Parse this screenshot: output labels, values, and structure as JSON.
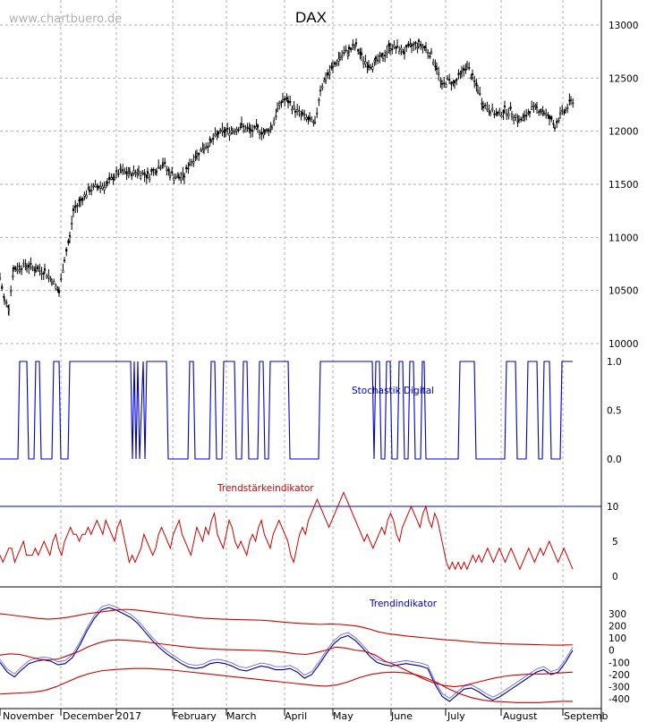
{
  "watermark": "www.chartbuero.de",
  "chart_data": [
    {
      "type": "candlestick",
      "title": "DAX",
      "ylim": [
        10000,
        13000
      ],
      "yticks": [
        "13000",
        "12500",
        "12000",
        "11500",
        "11000",
        "10500",
        "10000"
      ],
      "months": [
        "November",
        "December",
        "2017",
        "February",
        "March",
        "April",
        "May",
        "June",
        "July",
        "August",
        "Septemb"
      ],
      "grid": true,
      "approx_close_path": [
        [
          0,
          10620
        ],
        [
          5,
          10400
        ],
        [
          10,
          10350
        ],
        [
          15,
          10700
        ],
        [
          22,
          10720
        ],
        [
          30,
          10740
        ],
        [
          40,
          10700
        ],
        [
          50,
          10680
        ],
        [
          58,
          10600
        ],
        [
          66,
          10480
        ],
        [
          72,
          10800
        ],
        [
          78,
          11000
        ],
        [
          82,
          11250
        ],
        [
          90,
          11350
        ],
        [
          100,
          11450
        ],
        [
          110,
          11480
        ],
        [
          120,
          11500
        ],
        [
          128,
          11580
        ],
        [
          135,
          11620
        ],
        [
          145,
          11600
        ],
        [
          155,
          11620
        ],
        [
          165,
          11580
        ],
        [
          175,
          11650
        ],
        [
          182,
          11700
        ],
        [
          190,
          11600
        ],
        [
          200,
          11560
        ],
        [
          206,
          11580
        ],
        [
          212,
          11700
        ],
        [
          220,
          11780
        ],
        [
          228,
          11850
        ],
        [
          236,
          11900
        ],
        [
          244,
          11980
        ],
        [
          252,
          12000
        ],
        [
          260,
          12010
        ],
        [
          270,
          12050
        ],
        [
          280,
          12000
        ],
        [
          288,
          12020
        ],
        [
          296,
          11980
        ],
        [
          304,
          12050
        ],
        [
          310,
          12200
        ],
        [
          316,
          12300
        ],
        [
          322,
          12280
        ],
        [
          330,
          12200
        ],
        [
          338,
          12150
        ],
        [
          346,
          12100
        ],
        [
          352,
          12060
        ],
        [
          358,
          12400
        ],
        [
          364,
          12500
        ],
        [
          372,
          12600
        ],
        [
          380,
          12700
        ],
        [
          390,
          12760
        ],
        [
          398,
          12800
        ],
        [
          404,
          12700
        ],
        [
          412,
          12620
        ],
        [
          420,
          12650
        ],
        [
          428,
          12700
        ],
        [
          436,
          12800
        ],
        [
          444,
          12780
        ],
        [
          452,
          12750
        ],
        [
          460,
          12800
        ],
        [
          468,
          12820
        ],
        [
          476,
          12780
        ],
        [
          482,
          12720
        ],
        [
          488,
          12600
        ],
        [
          494,
          12420
        ],
        [
          500,
          12480
        ],
        [
          508,
          12450
        ],
        [
          516,
          12550
        ],
        [
          522,
          12620
        ],
        [
          528,
          12500
        ],
        [
          534,
          12400
        ],
        [
          540,
          12250
        ],
        [
          548,
          12200
        ],
        [
          556,
          12150
        ],
        [
          564,
          12200
        ],
        [
          572,
          12180
        ],
        [
          580,
          12100
        ],
        [
          586,
          12120
        ],
        [
          592,
          12200
        ],
        [
          600,
          12220
        ],
        [
          608,
          12180
        ],
        [
          614,
          12120
        ],
        [
          620,
          12050
        ],
        [
          626,
          12150
        ],
        [
          632,
          12200
        ],
        [
          638,
          12280
        ],
        [
          642,
          12300
        ]
      ]
    },
    {
      "type": "line",
      "title": "Stochastik Digital",
      "yticks": [
        "1.0",
        "0.5",
        "0.0"
      ],
      "ylim": [
        0,
        1
      ],
      "signal": [
        [
          0,
          0
        ],
        [
          20,
          0
        ],
        [
          22,
          1
        ],
        [
          30,
          1
        ],
        [
          32,
          0
        ],
        [
          38,
          0
        ],
        [
          40,
          1
        ],
        [
          44,
          1
        ],
        [
          46,
          0
        ],
        [
          58,
          0
        ],
        [
          60,
          1
        ],
        [
          66,
          1
        ],
        [
          68,
          0
        ],
        [
          76,
          0
        ],
        [
          78,
          1
        ],
        [
          146,
          1
        ],
        [
          148,
          0
        ],
        [
          150,
          1
        ],
        [
          152,
          0
        ],
        [
          154,
          1
        ],
        [
          156,
          0
        ],
        [
          160,
          1
        ],
        [
          162,
          0
        ],
        [
          164,
          1
        ],
        [
          186,
          1
        ],
        [
          188,
          0
        ],
        [
          210,
          0
        ],
        [
          212,
          1
        ],
        [
          216,
          1
        ],
        [
          218,
          0
        ],
        [
          234,
          0
        ],
        [
          236,
          1
        ],
        [
          240,
          1
        ],
        [
          242,
          0
        ],
        [
          248,
          0
        ],
        [
          250,
          1
        ],
        [
          262,
          1
        ],
        [
          264,
          0
        ],
        [
          270,
          0
        ],
        [
          272,
          1
        ],
        [
          276,
          1
        ],
        [
          278,
          0
        ],
        [
          288,
          0
        ],
        [
          290,
          1
        ],
        [
          294,
          1
        ],
        [
          296,
          0
        ],
        [
          300,
          0
        ],
        [
          302,
          1
        ],
        [
          322,
          1
        ],
        [
          324,
          0
        ],
        [
          356,
          0
        ],
        [
          358,
          1
        ],
        [
          416,
          1
        ],
        [
          418,
          0
        ],
        [
          420,
          1
        ],
        [
          424,
          1
        ],
        [
          426,
          0
        ],
        [
          430,
          0
        ],
        [
          432,
          1
        ],
        [
          436,
          1
        ],
        [
          438,
          0
        ],
        [
          444,
          0
        ],
        [
          446,
          1
        ],
        [
          450,
          1
        ],
        [
          452,
          0
        ],
        [
          456,
          0
        ],
        [
          458,
          1
        ],
        [
          462,
          1
        ],
        [
          464,
          0
        ],
        [
          470,
          0
        ],
        [
          472,
          1
        ],
        [
          474,
          1
        ],
        [
          476,
          0
        ],
        [
          512,
          0
        ],
        [
          514,
          1
        ],
        [
          530,
          1
        ],
        [
          532,
          0
        ],
        [
          564,
          0
        ],
        [
          566,
          1
        ],
        [
          576,
          1
        ],
        [
          578,
          0
        ],
        [
          588,
          0
        ],
        [
          590,
          1
        ],
        [
          600,
          1
        ],
        [
          602,
          0
        ],
        [
          606,
          0
        ],
        [
          608,
          1
        ],
        [
          614,
          1
        ],
        [
          616,
          0
        ],
        [
          626,
          0
        ],
        [
          628,
          1
        ],
        [
          640,
          1
        ]
      ]
    },
    {
      "type": "line",
      "title": "Trendstärkeindikator",
      "yticks": [
        "10",
        "5",
        "0"
      ],
      "ylim": [
        0,
        10
      ],
      "values": [
        3,
        2,
        3,
        4,
        4,
        2,
        3,
        4,
        5,
        3,
        3,
        3,
        4,
        3,
        4,
        5,
        4,
        3,
        5,
        6,
        4,
        3,
        5,
        6,
        7,
        6,
        6,
        5,
        6,
        6,
        7,
        6,
        7,
        8,
        7,
        6,
        8,
        7,
        6,
        5,
        7,
        8,
        6,
        4,
        2,
        3,
        2,
        3,
        4,
        6,
        5,
        4,
        3,
        4,
        6,
        7,
        6,
        5,
        4,
        6,
        7,
        8,
        6,
        5,
        4,
        3,
        5,
        7,
        6,
        5,
        7,
        6,
        8,
        9,
        6,
        5,
        4,
        6,
        8,
        7,
        5,
        4,
        5,
        4,
        3,
        5,
        6,
        5,
        7,
        8,
        6,
        5,
        4,
        6,
        7,
        8,
        7,
        6,
        5,
        3,
        2,
        4,
        6,
        7,
        6,
        8,
        9,
        10,
        11,
        10,
        9,
        8,
        7,
        8,
        9,
        10,
        11,
        12,
        11,
        10,
        9,
        8,
        7,
        6,
        5,
        6,
        5,
        4,
        5,
        6,
        7,
        6,
        8,
        9,
        8,
        6,
        5,
        7,
        8,
        9,
        10,
        9,
        8,
        7,
        9,
        10,
        8,
        7,
        9,
        8,
        6,
        4,
        2,
        1,
        2,
        1,
        2,
        1,
        2,
        1,
        2,
        3,
        2,
        3,
        2,
        3,
        4,
        3,
        2,
        3,
        4,
        3,
        2,
        3,
        4,
        3,
        2,
        1,
        2,
        3,
        4,
        3,
        2,
        3,
        4,
        3,
        4,
        5,
        4,
        3,
        2,
        3,
        4,
        3,
        2,
        1
      ]
    },
    {
      "type": "line",
      "title": "Trendindikator",
      "yticks": [
        "300",
        "200",
        "100",
        "0",
        "-100",
        "-200",
        "-300",
        "-400"
      ],
      "ylim": [
        -450,
        380
      ],
      "series": [
        {
          "color": "#000080",
          "values": [
            -100,
            -180,
            -220,
            -160,
            -110,
            -90,
            -80,
            -90,
            -120,
            -110,
            -60,
            40,
            160,
            260,
            330,
            350,
            330,
            300,
            270,
            220,
            150,
            80,
            20,
            -30,
            -70,
            -110,
            -140,
            -150,
            -140,
            -110,
            -100,
            -110,
            -130,
            -160,
            -170,
            -150,
            -130,
            -140,
            -160,
            -160,
            -150,
            -180,
            -230,
            -200,
            -120,
            -30,
            50,
            100,
            120,
            80,
            20,
            -50,
            -100,
            -120,
            -130,
            -120,
            -110,
            -120,
            -130,
            -150,
            -280,
            -380,
            -420,
            -370,
            -320,
            -310,
            -340,
            -380,
            -410,
            -380,
            -340,
            -300,
            -260,
            -220,
            -180,
            -160,
            -200,
            -180,
            -100,
            0
          ]
        },
        {
          "color": "#cc0000",
          "values": [
            300,
            290,
            280,
            270,
            260,
            255,
            260,
            270,
            285,
            300,
            310,
            320,
            330,
            335,
            330,
            320,
            310,
            300,
            290,
            280,
            270,
            262,
            258,
            255,
            252,
            250,
            248,
            246,
            240,
            232,
            225,
            220,
            215,
            212,
            215,
            212,
            205,
            195,
            175,
            150,
            135,
            125,
            115,
            108,
            100,
            92,
            85,
            80,
            72,
            65,
            60,
            56,
            52,
            50,
            48,
            46,
            44,
            42,
            42,
            44
          ]
        },
        {
          "color": "#cc0000",
          "values": [
            -40,
            -30,
            -35,
            -55,
            -75,
            -80,
            -70,
            -40,
            -10,
            30,
            60,
            80,
            85,
            80,
            75,
            65,
            55,
            45,
            35,
            25,
            18,
            12,
            8,
            5,
            2,
            0,
            -2,
            -5,
            -10,
            -20,
            -30,
            -35,
            -20,
            0,
            25,
            18,
            0,
            -10,
            -40,
            -90,
            -120,
            -160,
            -200,
            -240,
            -270,
            -290,
            -300,
            -290,
            -270,
            -250,
            -230,
            -215,
            -205,
            -200,
            -195,
            -195,
            -190,
            -185,
            -180
          ]
        },
        {
          "color": "#cc0000",
          "values": [
            -360,
            -355,
            -350,
            -345,
            -330,
            -300,
            -260,
            -220,
            -190,
            -170,
            -160,
            -155,
            -150,
            -150,
            -155,
            -160,
            -170,
            -180,
            -190,
            -200,
            -210,
            -220,
            -230,
            -240,
            -250,
            -260,
            -270,
            -280,
            -290,
            -295,
            -285,
            -260,
            -225,
            -200,
            -185,
            -180,
            -185,
            -200,
            -230,
            -270,
            -320,
            -360,
            -390,
            -410,
            -420,
            -425,
            -430,
            -430,
            -430,
            -425,
            -420,
            -420
          ]
        }
      ]
    }
  ]
}
